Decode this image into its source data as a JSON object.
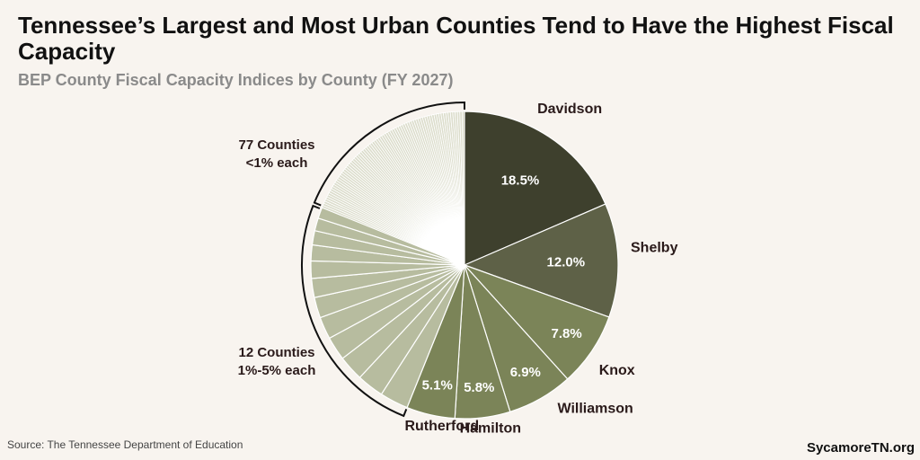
{
  "title": "Tennessee’s Largest and Most Urban Counties Tend to Have the Highest Fiscal Capacity",
  "subtitle": "BEP County Fiscal Capacity Indices by County (FY 2027)",
  "source": "Source: The Tennessee Department of Education",
  "brand": "SycamoreTN.org",
  "colors": {
    "background": "#f8f4ef",
    "Davidson": "#3e402d",
    "Shelby": "#5e6147",
    "Knox": "#7b8458",
    "Williamson": "#7b8458",
    "Hamilton": "#7b8458",
    "Rutherford": "#7b8458",
    "mid_group": "#b7bc9f",
    "small_group": "#dcddcc",
    "slice_border": "#ffffff"
  },
  "chart_data": {
    "type": "pie",
    "start_angle": "12 o'clock, clockwise",
    "slices": [
      {
        "name": "Davidson",
        "value": 18.5,
        "label": "18.5%"
      },
      {
        "name": "Shelby",
        "value": 12.0,
        "label": "12.0%"
      },
      {
        "name": "Knox",
        "value": 7.8,
        "label": "7.8%"
      },
      {
        "name": "Williamson",
        "value": 6.9,
        "label": "6.9%"
      },
      {
        "name": "Hamilton",
        "value": 5.8,
        "label": "5.8%"
      },
      {
        "name": "Rutherford",
        "value": 5.1,
        "label": "5.1%"
      }
    ],
    "groups": [
      {
        "label_line1": "12 Counties",
        "label_line2": "1%-5% each",
        "count": 12,
        "total": 25.0
      },
      {
        "label_line1": "77 Counties",
        "label_line2": "<1% each",
        "count": 77,
        "total": 18.9
      }
    ]
  }
}
